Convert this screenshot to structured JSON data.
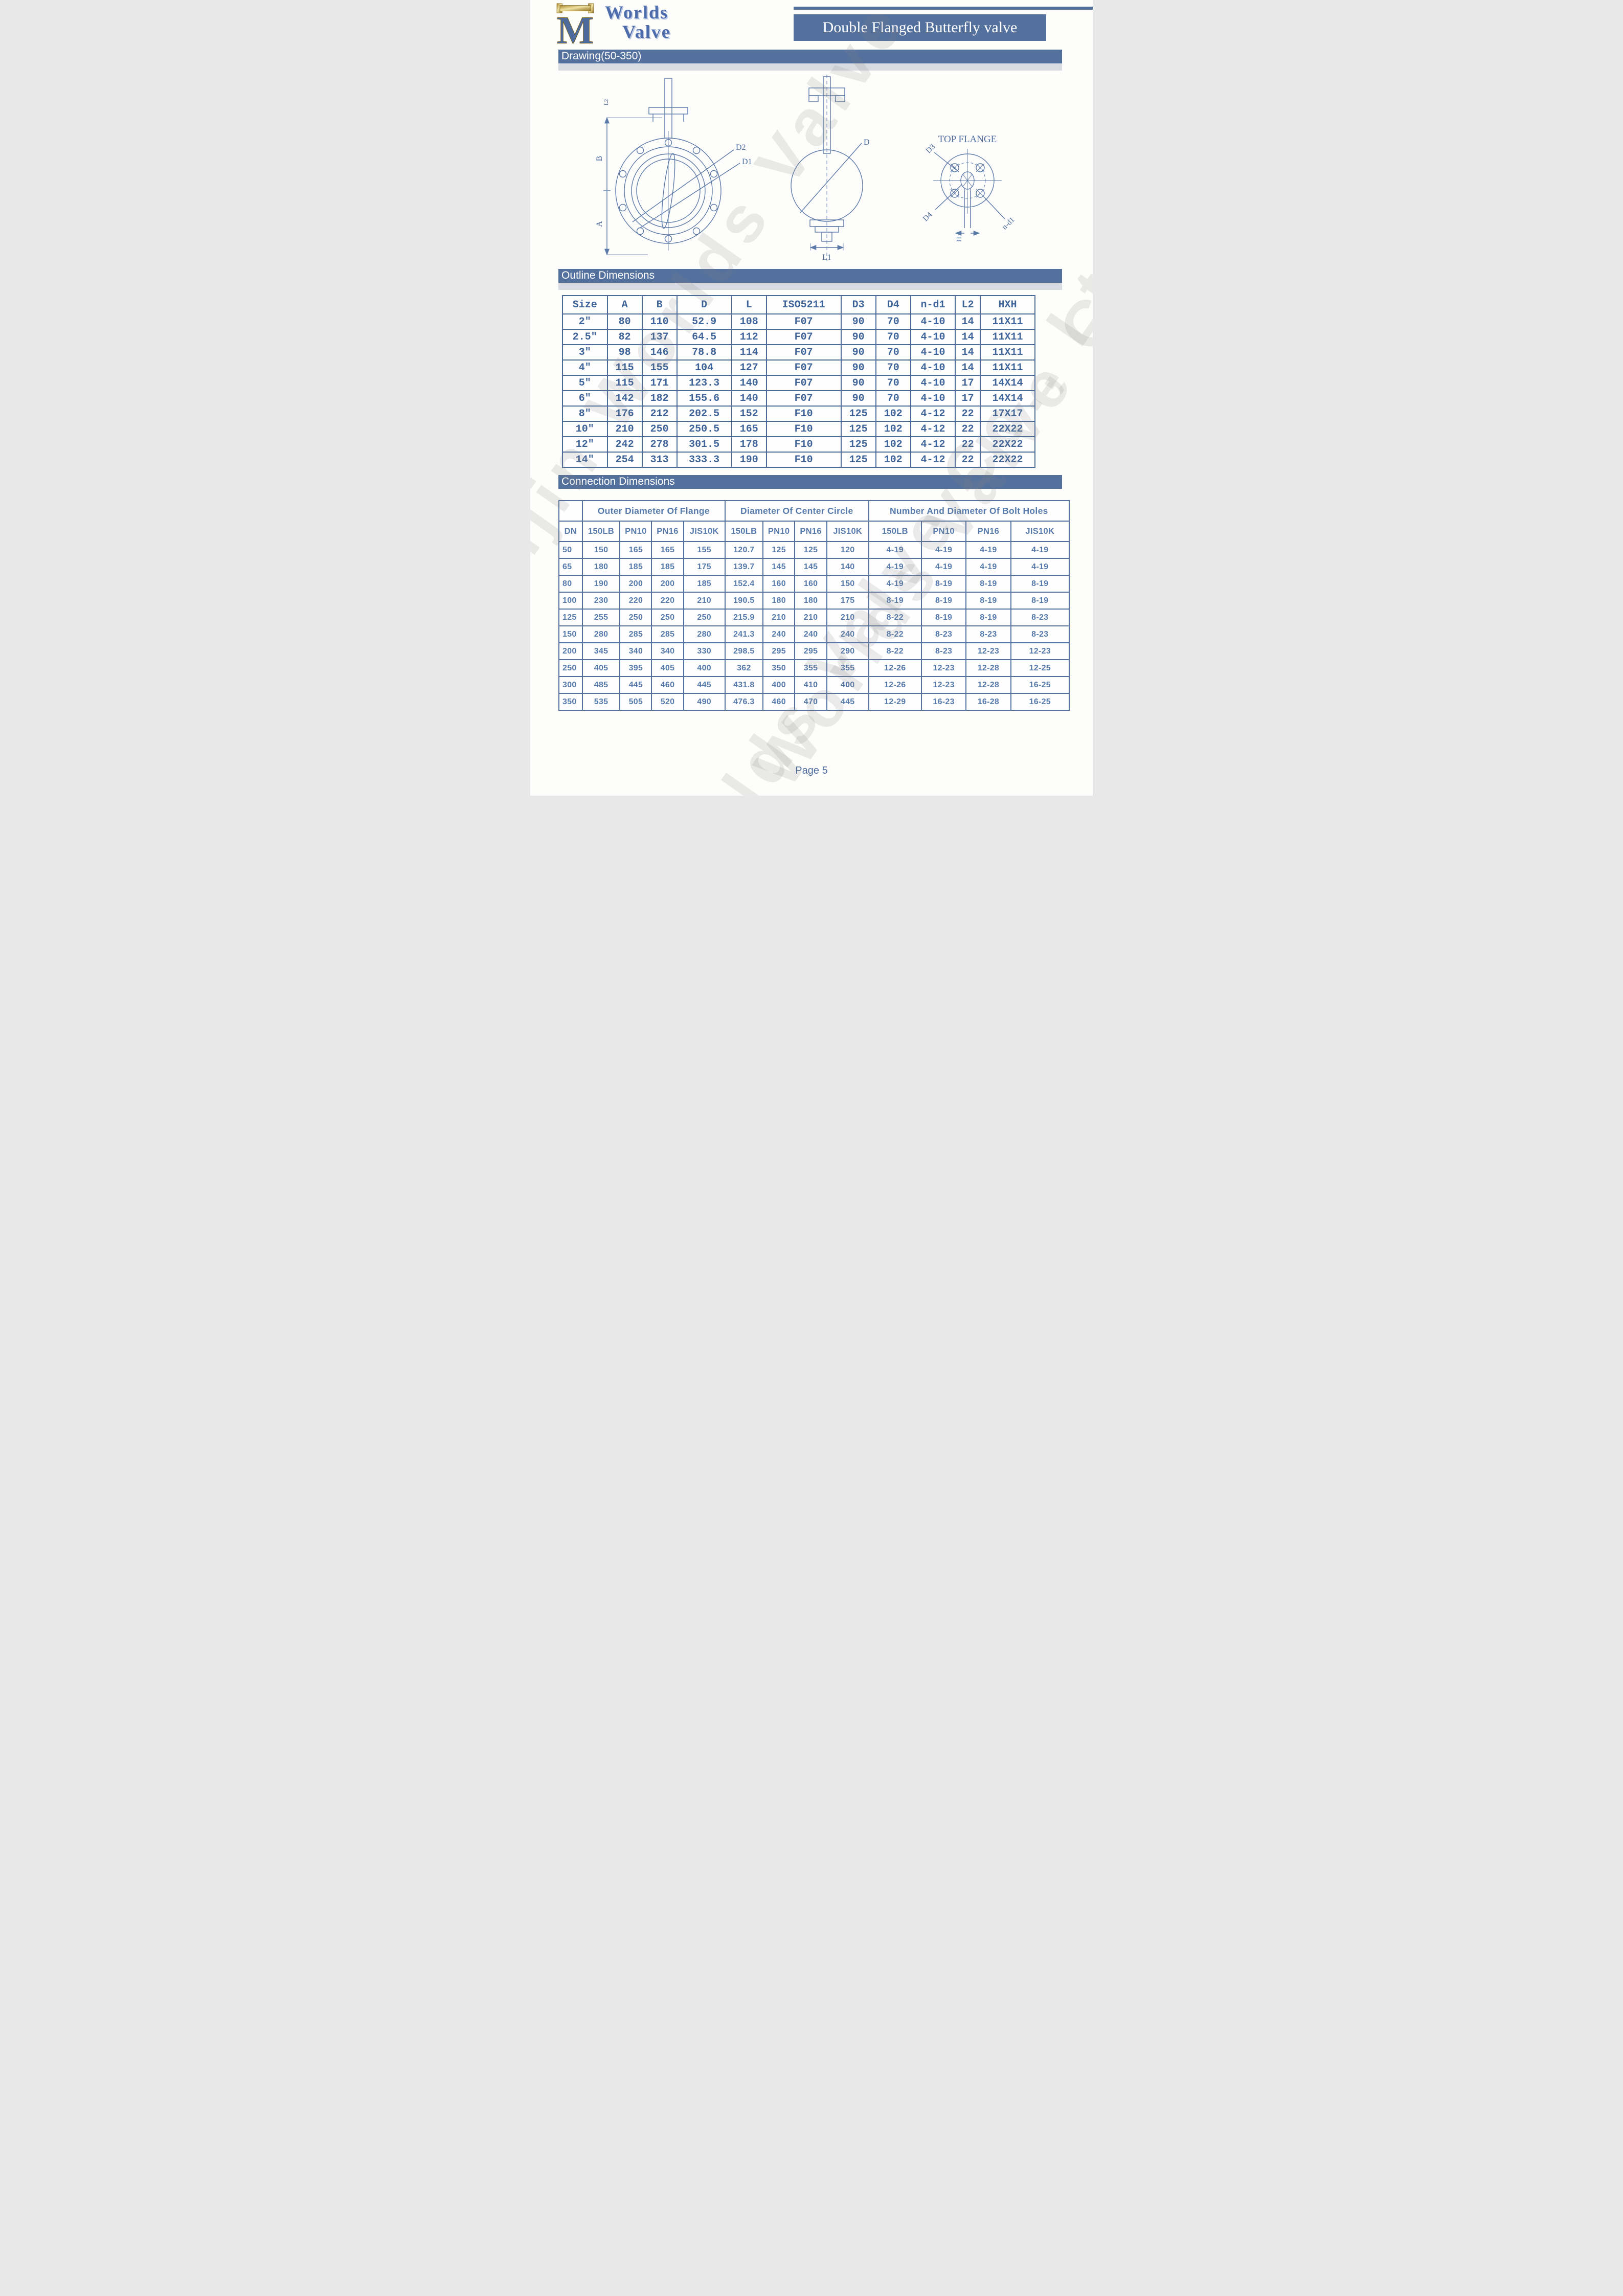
{
  "page": {
    "brand": {
      "monogram": "M",
      "name_line1": "Worlds",
      "name_line2": "Valve"
    },
    "title": "Double Flanged Butterfly valve",
    "watermark": "Tianjin Worlds Valve Co., Ltd.",
    "footer": "Page 5"
  },
  "colors": {
    "accent_blue": "#54719e",
    "table_line_blue": "#4a6b9a",
    "value_text_blue": "#3f6499",
    "connection_text_blue": "#567aab",
    "logo_gold": "#caa23a",
    "watermark_gray": "#9a9a9a"
  },
  "sections": {
    "drawing": {
      "heading": "Drawing(50-350)",
      "labels": {
        "front_b": "B",
        "front_a": "A",
        "front_l2": "L2",
        "front_d2": "D2",
        "front_d1": "D1",
        "side_d": "D",
        "side_l1": "L1",
        "top_title": "TOP FLANGE",
        "top_d3": "D3",
        "top_d4": "D4",
        "top_ndl": "n-d1",
        "top_h": "H"
      }
    },
    "outline": {
      "heading": "Outline Dimensions",
      "table": {
        "columns": [
          "Size",
          "A",
          "B",
          "D",
          "L",
          "ISO5211",
          "D3",
          "D4",
          "n-d1",
          "L2",
          "HXH"
        ],
        "rows": [
          [
            "2\"",
            "80",
            "110",
            "52.9",
            "108",
            "F07",
            "90",
            "70",
            "4-10",
            "14",
            "11X11"
          ],
          [
            "2.5\"",
            "82",
            "137",
            "64.5",
            "112",
            "F07",
            "90",
            "70",
            "4-10",
            "14",
            "11X11"
          ],
          [
            "3\"",
            "98",
            "146",
            "78.8",
            "114",
            "F07",
            "90",
            "70",
            "4-10",
            "14",
            "11X11"
          ],
          [
            "4\"",
            "115",
            "155",
            "104",
            "127",
            "F07",
            "90",
            "70",
            "4-10",
            "14",
            "11X11"
          ],
          [
            "5\"",
            "115",
            "171",
            "123.3",
            "140",
            "F07",
            "90",
            "70",
            "4-10",
            "17",
            "14X14"
          ],
          [
            "6\"",
            "142",
            "182",
            "155.6",
            "140",
            "F07",
            "90",
            "70",
            "4-10",
            "17",
            "14X14"
          ],
          [
            "8\"",
            "176",
            "212",
            "202.5",
            "152",
            "F10",
            "125",
            "102",
            "4-12",
            "22",
            "17X17"
          ],
          [
            "10\"",
            "210",
            "250",
            "250.5",
            "165",
            "F10",
            "125",
            "102",
            "4-12",
            "22",
            "22X22"
          ],
          [
            "12\"",
            "242",
            "278",
            "301.5",
            "178",
            "F10",
            "125",
            "102",
            "4-12",
            "22",
            "22X22"
          ],
          [
            "14\"",
            "254",
            "313",
            "333.3",
            "190",
            "F10",
            "125",
            "102",
            "4-12",
            "22",
            "22X22"
          ]
        ]
      }
    },
    "connection": {
      "heading": "Connection Dimensions",
      "table": {
        "dn_label": "DN",
        "groups": [
          "Outer Diameter Of Flange",
          "Diameter Of Center Circle",
          "Number And Diameter Of Bolt Holes"
        ],
        "sub_columns": [
          "150LB",
          "PN10",
          "PN16",
          "JIS10K"
        ],
        "rows": [
          {
            "dn": "50",
            "flange": [
              "150",
              "165",
              "165",
              "155"
            ],
            "center": [
              "120.7",
              "125",
              "125",
              "120"
            ],
            "bolts": [
              "4-19",
              "4-19",
              "4-19",
              "4-19"
            ]
          },
          {
            "dn": "65",
            "flange": [
              "180",
              "185",
              "185",
              "175"
            ],
            "center": [
              "139.7",
              "145",
              "145",
              "140"
            ],
            "bolts": [
              "4-19",
              "4-19",
              "4-19",
              "4-19"
            ]
          },
          {
            "dn": "80",
            "flange": [
              "190",
              "200",
              "200",
              "185"
            ],
            "center": [
              "152.4",
              "160",
              "160",
              "150"
            ],
            "bolts": [
              "4-19",
              "8-19",
              "8-19",
              "8-19"
            ]
          },
          {
            "dn": "100",
            "flange": [
              "230",
              "220",
              "220",
              "210"
            ],
            "center": [
              "190.5",
              "180",
              "180",
              "175"
            ],
            "bolts": [
              "8-19",
              "8-19",
              "8-19",
              "8-19"
            ]
          },
          {
            "dn": "125",
            "flange": [
              "255",
              "250",
              "250",
              "250"
            ],
            "center": [
              "215.9",
              "210",
              "210",
              "210"
            ],
            "bolts": [
              "8-22",
              "8-19",
              "8-19",
              "8-23"
            ]
          },
          {
            "dn": "150",
            "flange": [
              "280",
              "285",
              "285",
              "280"
            ],
            "center": [
              "241.3",
              "240",
              "240",
              "240"
            ],
            "bolts": [
              "8-22",
              "8-23",
              "8-23",
              "8-23"
            ]
          },
          {
            "dn": "200",
            "flange": [
              "345",
              "340",
              "340",
              "330"
            ],
            "center": [
              "298.5",
              "295",
              "295",
              "290"
            ],
            "bolts": [
              "8-22",
              "8-23",
              "12-23",
              "12-23"
            ]
          },
          {
            "dn": "250",
            "flange": [
              "405",
              "395",
              "405",
              "400"
            ],
            "center": [
              "362",
              "350",
              "355",
              "355"
            ],
            "bolts": [
              "12-26",
              "12-23",
              "12-28",
              "12-25"
            ]
          },
          {
            "dn": "300",
            "flange": [
              "485",
              "445",
              "460",
              "445"
            ],
            "center": [
              "431.8",
              "400",
              "410",
              "400"
            ],
            "bolts": [
              "12-26",
              "12-23",
              "12-28",
              "16-25"
            ]
          },
          {
            "dn": "350",
            "flange": [
              "535",
              "505",
              "520",
              "490"
            ],
            "center": [
              "476.3",
              "460",
              "470",
              "445"
            ],
            "bolts": [
              "12-29",
              "16-23",
              "16-28",
              "16-25"
            ]
          }
        ]
      }
    }
  }
}
